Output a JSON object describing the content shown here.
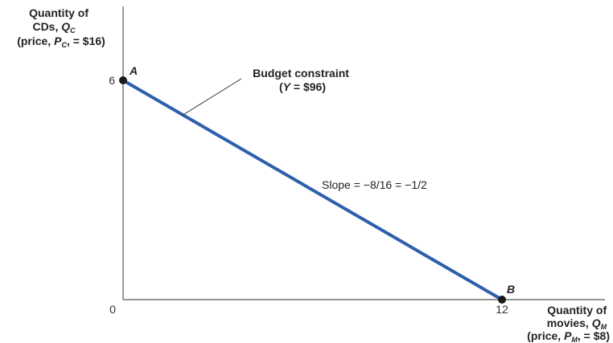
{
  "chart_data": {
    "type": "line",
    "ylabel": {
      "line1": "Quantity of",
      "line2_text": "CDs, ",
      "line2_symbol": "Q",
      "line2_sub": "C",
      "line3_pre": "(price, ",
      "line3_symbol": "P",
      "line3_sub": "C",
      "line3_post": ", = $16)"
    },
    "xlabel": {
      "line1": "Quantity of",
      "line2_text": "movies, ",
      "line2_symbol": "Q",
      "line2_sub": "M",
      "line3_pre": "(price, ",
      "line3_symbol": "P",
      "line3_sub": "M",
      "line3_post": ", = $8)"
    },
    "x_ticks": [
      0,
      12
    ],
    "y_ticks": [
      6
    ],
    "xlim": [
      0,
      12
    ],
    "ylim": [
      0,
      6
    ],
    "series": [
      {
        "x": [
          0,
          12
        ],
        "y": [
          6,
          0
        ],
        "color": "#2e5fad"
      }
    ],
    "points": [
      {
        "label": "A",
        "x": 0,
        "y": 6
      },
      {
        "label": "B",
        "x": 12,
        "y": 0
      }
    ],
    "annotations": {
      "budget": {
        "line1": "Budget constraint",
        "line2_pre": "(",
        "line2_symbol": "Y",
        "line2_post": " = $96)"
      },
      "slope": "Slope =  −8/16 = −1/2"
    }
  }
}
